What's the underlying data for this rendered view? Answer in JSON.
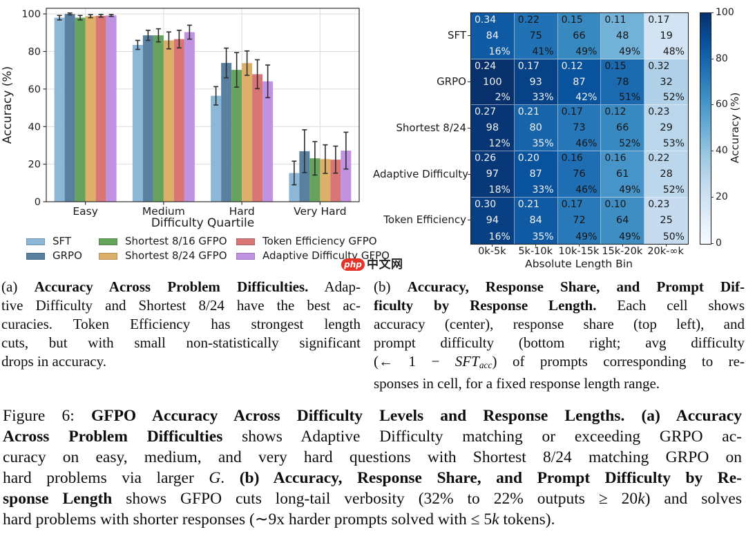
{
  "watermark": {
    "brand": "php",
    "suffix": "中文网",
    "oval_color": "#e53228"
  },
  "chart_data": [
    {
      "type": "bar",
      "panel": "a",
      "categories": [
        "Easy",
        "Medium",
        "Hard",
        "Very Hard"
      ],
      "series": [
        {
          "name": "SFT",
          "color": "#8db7d7",
          "values": [
            98,
            83.5,
            56.4,
            15.3
          ],
          "errors": [
            1.2,
            2.4,
            4.9,
            6.3
          ]
        },
        {
          "name": "GRPO",
          "color": "#5a80a0",
          "values": [
            100,
            88.6,
            73.9,
            26.9
          ],
          "errors": [
            0.5,
            2.7,
            7.9,
            11.4
          ]
        },
        {
          "name": "Shortest 8/16 GFPO",
          "color": "#66a45e",
          "values": [
            98,
            88.6,
            70.2,
            23.1
          ],
          "errors": [
            1.2,
            3.5,
            9.2,
            8.9
          ]
        },
        {
          "name": "Shortest 8/24 GFPO",
          "color": "#ddb06a",
          "values": [
            98.8,
            85.9,
            73.8,
            22.7
          ],
          "errors": [
            0.8,
            4.5,
            6.5,
            7.6
          ]
        },
        {
          "name": "Token Efficiency GFPO",
          "color": "#d97575",
          "values": [
            99,
            86.6,
            67.9,
            22.4
          ],
          "errors": [
            0.7,
            4.7,
            7.7,
            7.2
          ]
        },
        {
          "name": "Adaptive Difficulty GFPO",
          "color": "#c292e2",
          "values": [
            99.2,
            90.3,
            64.1,
            27.2
          ],
          "errors": [
            0.5,
            3.7,
            8.7,
            9.8
          ]
        }
      ],
      "xlabel": "Difficulty Quartile",
      "ylabel": "Accuracy (%)",
      "yticks": [
        0,
        20,
        40,
        60,
        80,
        100
      ],
      "ylim": [
        0,
        103
      ],
      "grid": true,
      "error_bar_color": "#2c2c2c",
      "legend_position": "below"
    },
    {
      "type": "heatmap",
      "panel": "b",
      "rows": [
        "SFT",
        "GRPO",
        "Shortest 8/24",
        "Adaptive Difficulty",
        "Token Efficiency"
      ],
      "columns": [
        "0k-5k",
        "5k-10k",
        "10k-15k",
        "15k-20k",
        "20k-∞k"
      ],
      "xlabel": "Absolute Length Bin",
      "colorbar_label": "Accuracy (%)",
      "colorbar_ticks": [
        0,
        20,
        40,
        60,
        80,
        100
      ],
      "colormap": "Blues",
      "vmin": 0,
      "vmax": 100,
      "cell_legend": {
        "top_left": "response share",
        "center": "accuracy",
        "bottom_right": "prompt difficulty"
      },
      "cells": [
        [
          {
            "share": "0.34",
            "acc": 84,
            "diff": "16%"
          },
          {
            "share": "0.22",
            "acc": 75,
            "diff": "41%"
          },
          {
            "share": "0.15",
            "acc": 66,
            "diff": "49%"
          },
          {
            "share": "0.11",
            "acc": 48,
            "diff": "49%"
          },
          {
            "share": "0.17",
            "acc": 19,
            "diff": "48%"
          }
        ],
        [
          {
            "share": "0.24",
            "acc": 100,
            "diff": "2%"
          },
          {
            "share": "0.17",
            "acc": 93,
            "diff": "33%"
          },
          {
            "share": "0.12",
            "acc": 87,
            "diff": "42%"
          },
          {
            "share": "0.15",
            "acc": 78,
            "diff": "51%"
          },
          {
            "share": "0.32",
            "acc": 32,
            "diff": "52%"
          }
        ],
        [
          {
            "share": "0.27",
            "acc": 98,
            "diff": "12%"
          },
          {
            "share": "0.21",
            "acc": 80,
            "diff": "35%"
          },
          {
            "share": "0.17",
            "acc": 73,
            "diff": "46%"
          },
          {
            "share": "0.12",
            "acc": 66,
            "diff": "52%"
          },
          {
            "share": "0.23",
            "acc": 29,
            "diff": "53%"
          }
        ],
        [
          {
            "share": "0.26",
            "acc": 97,
            "diff": "18%"
          },
          {
            "share": "0.20",
            "acc": 87,
            "diff": "33%"
          },
          {
            "share": "0.16",
            "acc": 76,
            "diff": "46%"
          },
          {
            "share": "0.16",
            "acc": 61,
            "diff": "49%"
          },
          {
            "share": "0.22",
            "acc": 28,
            "diff": "52%"
          }
        ],
        [
          {
            "share": "0.30",
            "acc": 94,
            "diff": "16%"
          },
          {
            "share": "0.21",
            "acc": 84,
            "diff": "35%"
          },
          {
            "share": "0.17",
            "acc": 72,
            "diff": "49%"
          },
          {
            "share": "0.10",
            "acc": 64,
            "diff": "49%"
          },
          {
            "share": "0.23",
            "acc": 25,
            "diff": "50%"
          }
        ]
      ]
    }
  ],
  "captions": {
    "a_lines": [
      [
        {
          "t": "(a) "
        },
        {
          "t": "Accuracy Across Problem Difficulties.",
          "s": "b"
        },
        {
          "t": " Adap-"
        }
      ],
      [
        {
          "t": "tive Difficulty and Shortest 8/24 have the best ac-"
        }
      ],
      [
        {
          "t": "curacies. Token Efficiency has strongest length"
        }
      ],
      [
        {
          "t": "cuts, but with small non-statistically significant"
        }
      ],
      [
        {
          "t": "drops in accuracy."
        }
      ]
    ],
    "b_lines": [
      [
        {
          "t": "(b) "
        },
        {
          "t": "Accuracy, Response Share, and Prompt Dif-",
          "s": "b"
        }
      ],
      [
        {
          "t": "ficulty by Response Length.",
          "s": "b"
        },
        {
          "t": " Each cell shows"
        }
      ],
      [
        {
          "t": "accuracy (center), response share (top left), and"
        }
      ],
      [
        {
          "t": "prompt difficulty (bottom right; avg difficulty"
        }
      ],
      [
        {
          "t": "(← 1 − "
        },
        {
          "t": "SFT",
          "s": "i"
        },
        {
          "t": "acc",
          "s": "isub"
        },
        {
          "t": ") of prompts corresponding to re-"
        }
      ],
      [
        {
          "t": "sponses in cell, for a fixed response length range."
        }
      ]
    ],
    "figure_lines": [
      [
        {
          "t": "Figure 6: "
        },
        {
          "t": "GFPO Accuracy Across Difficulty Levels and Response Lengths. (a) Accuracy",
          "s": "b"
        }
      ],
      [
        {
          "t": "Across Problem Difficulties",
          "s": "b"
        },
        {
          "t": " shows Adaptive Difficulty matching or exceeding GRPO ac-"
        }
      ],
      [
        {
          "t": "curacy on easy, medium, and very hard questions with Shortest 8/24 matching GRPO on"
        }
      ],
      [
        {
          "t": "hard problems via larger "
        },
        {
          "t": "G",
          "s": "i"
        },
        {
          "t": ". "
        },
        {
          "t": "(b) Accuracy, Response Share, and Prompt Difficulty by Re-",
          "s": "b"
        }
      ],
      [
        {
          "t": "sponse Length",
          "s": "b"
        },
        {
          "t": " shows GFPO cuts long-tail verbosity (32% to 22% outputs ≥ 20"
        },
        {
          "t": "k",
          "s": "i"
        },
        {
          "t": ") and solves"
        }
      ],
      [
        {
          "t": "hard problems with shorter responses (∼9x harder prompts solved with ≤ 5"
        },
        {
          "t": "k",
          "s": "i"
        },
        {
          "t": " tokens)."
        }
      ]
    ]
  }
}
